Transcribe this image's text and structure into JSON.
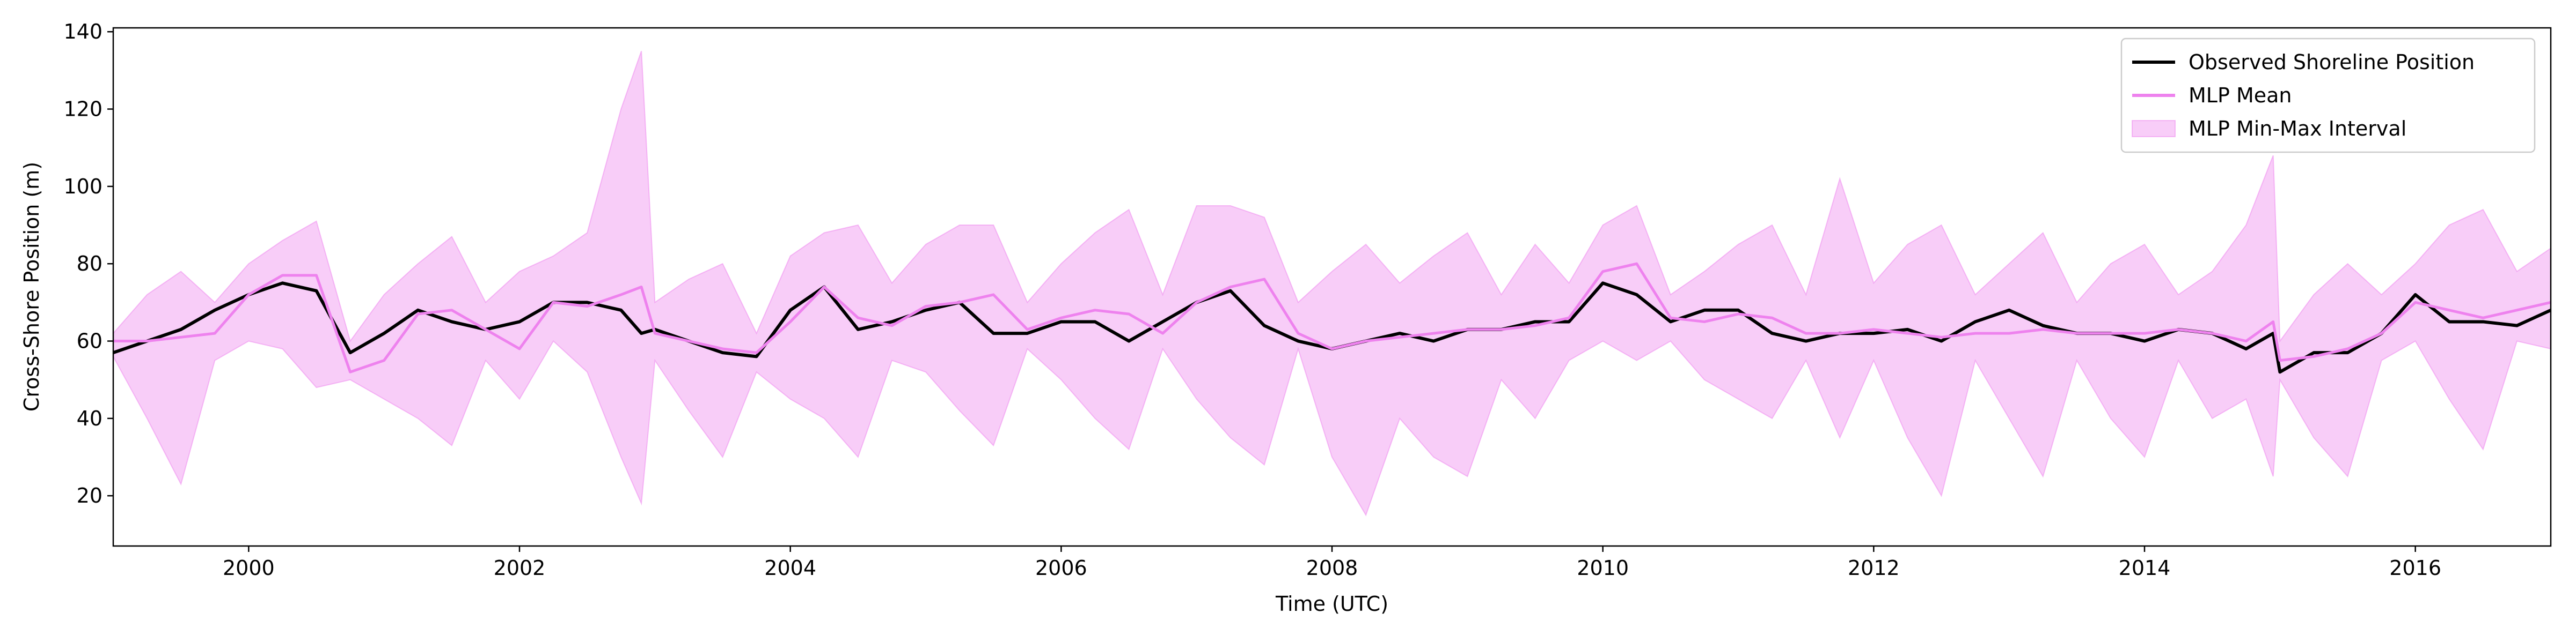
{
  "chart_data": {
    "type": "line",
    "xlabel": "Time (UTC)",
    "ylabel": "Cross-Shore Position (m)",
    "x": [
      1999.0,
      1999.25,
      1999.5,
      1999.75,
      2000.0,
      2000.25,
      2000.5,
      2000.75,
      2001.0,
      2001.25,
      2001.5,
      2001.75,
      2002.0,
      2002.25,
      2002.5,
      2002.75,
      2002.9,
      2003.0,
      2003.25,
      2003.5,
      2003.75,
      2004.0,
      2004.25,
      2004.5,
      2004.75,
      2005.0,
      2005.25,
      2005.5,
      2005.75,
      2006.0,
      2006.25,
      2006.5,
      2006.75,
      2007.0,
      2007.25,
      2007.5,
      2007.75,
      2008.0,
      2008.25,
      2008.5,
      2008.75,
      2009.0,
      2009.25,
      2009.5,
      2009.75,
      2010.0,
      2010.25,
      2010.5,
      2010.75,
      2011.0,
      2011.25,
      2011.5,
      2011.75,
      2012.0,
      2012.25,
      2012.5,
      2012.75,
      2013.0,
      2013.25,
      2013.5,
      2013.75,
      2014.0,
      2014.25,
      2014.5,
      2014.75,
      2014.95,
      2015.0,
      2015.25,
      2015.5,
      2015.75,
      2016.0,
      2016.25,
      2016.5,
      2016.75,
      2017.0
    ],
    "series": [
      {
        "name": "MLP Min-Max Interval",
        "color": "#ee82ee",
        "kind": "band",
        "values": [
          62,
          72,
          78,
          70,
          80,
          86,
          91,
          60,
          72,
          80,
          87,
          70,
          78,
          82,
          88,
          120,
          135,
          70,
          76,
          80,
          62,
          82,
          88,
          90,
          75,
          85,
          90,
          90,
          70,
          80,
          88,
          94,
          72,
          95,
          95,
          92,
          70,
          78,
          85,
          75,
          82,
          88,
          72,
          85,
          75,
          90,
          95,
          72,
          78,
          85,
          90,
          72,
          102,
          75,
          85,
          90,
          72,
          80,
          88,
          70,
          80,
          85,
          72,
          78,
          90,
          108,
          60,
          72,
          80,
          72,
          80,
          90,
          94,
          78,
          84
        ],
        "lower": [
          56,
          40,
          23,
          55,
          60,
          58,
          48,
          50,
          45,
          40,
          33,
          55,
          45,
          60,
          52,
          30,
          18,
          55,
          42,
          30,
          52,
          45,
          40,
          30,
          55,
          52,
          42,
          33,
          58,
          50,
          40,
          32,
          58,
          45,
          35,
          28,
          58,
          30,
          15,
          40,
          30,
          25,
          50,
          40,
          55,
          60,
          55,
          60,
          50,
          45,
          40,
          55,
          35,
          55,
          35,
          20,
          55,
          40,
          25,
          55,
          40,
          30,
          55,
          40,
          45,
          25,
          50,
          35,
          25,
          55,
          60,
          45,
          32,
          60,
          58
        ]
      },
      {
        "name": "Observed Shoreline Position",
        "color": "#000000",
        "kind": "line",
        "values": [
          57,
          60,
          63,
          68,
          72,
          75,
          73,
          57,
          62,
          68,
          65,
          63,
          65,
          70,
          70,
          68,
          62,
          63,
          60,
          57,
          56,
          68,
          74,
          63,
          65,
          68,
          70,
          62,
          62,
          65,
          65,
          60,
          65,
          70,
          73,
          64,
          60,
          58,
          60,
          62,
          60,
          63,
          63,
          65,
          65,
          75,
          72,
          65,
          68,
          68,
          62,
          60,
          62,
          62,
          63,
          60,
          65,
          68,
          64,
          62,
          62,
          60,
          63,
          62,
          58,
          62,
          52,
          57,
          57,
          62,
          72,
          65,
          65,
          64,
          68
        ]
      },
      {
        "name": "MLP Mean",
        "color": "#ee82ee",
        "kind": "line",
        "values": [
          60,
          60,
          61,
          62,
          72,
          77,
          77,
          52,
          55,
          67,
          68,
          63,
          58,
          70,
          69,
          72,
          74,
          62,
          60,
          58,
          57,
          65,
          74,
          66,
          64,
          69,
          70,
          72,
          63,
          66,
          68,
          67,
          62,
          70,
          74,
          76,
          62,
          58,
          60,
          61,
          62,
          63,
          63,
          64,
          66,
          78,
          80,
          66,
          65,
          67,
          66,
          62,
          62,
          63,
          62,
          61,
          62,
          62,
          63,
          62,
          62,
          62,
          63,
          62,
          60,
          65,
          55,
          56,
          58,
          62,
          70,
          68,
          66,
          68,
          70
        ]
      }
    ],
    "xlim": [
      1999.0,
      2017.0
    ],
    "xticks": [
      2000,
      2002,
      2004,
      2006,
      2008,
      2010,
      2012,
      2014,
      2016
    ],
    "ylim": [
      7,
      141
    ],
    "yticks": [
      20,
      40,
      60,
      80,
      100,
      120,
      140
    ],
    "legend": "upper right",
    "grid": false
  }
}
